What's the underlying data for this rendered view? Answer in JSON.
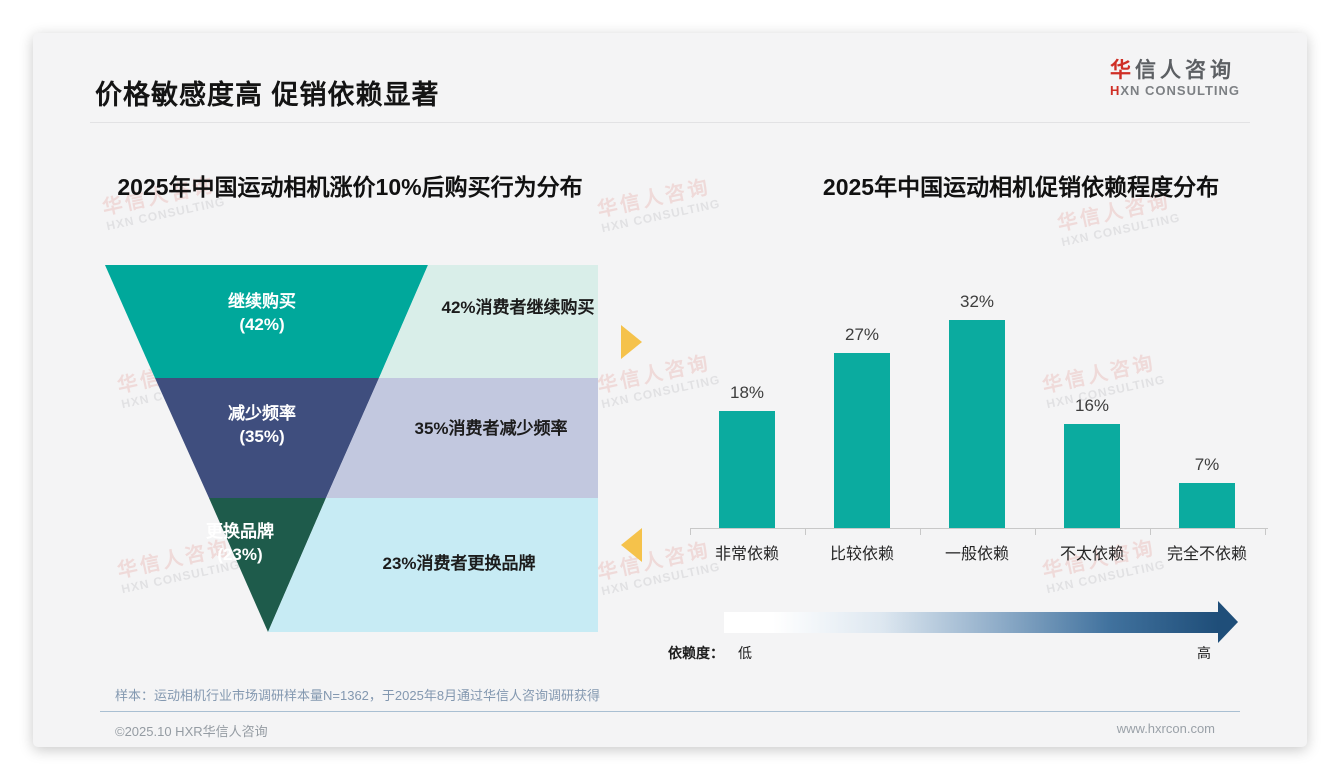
{
  "header": {
    "title": "价格敏感度高 促销依赖显著",
    "logo": {
      "brand_red": "华",
      "brand_rest": "信人咨询",
      "tagline_red": "H",
      "tagline_rest": "XN CONSULTING"
    }
  },
  "watermark": {
    "line1": "华信人咨询",
    "line2": "HXN CONSULTING"
  },
  "chart_data": [
    {
      "type": "funnel",
      "title": "2025年中国运动相机涨价10%后购买行为分布",
      "stages": [
        {
          "label": "继续购买",
          "value": 42,
          "pct_label": "(42%)",
          "note": "42%消费者继续购买",
          "color": "#00a89b",
          "panel_color": "#d9eee9"
        },
        {
          "label": "减少频率",
          "value": 35,
          "pct_label": "(35%)",
          "note": "35%消费者减少频率",
          "color": "#3f4e7e",
          "panel_color": "#c2c8df"
        },
        {
          "label": "更换品牌",
          "value": 23,
          "pct_label": "(23%)",
          "note": "23%消费者更换品牌",
          "color": "#1e5b4b",
          "panel_color": "#c7ebf4"
        }
      ]
    },
    {
      "type": "bar",
      "title": "2025年中国运动相机促销依赖程度分布",
      "categories": [
        "非常依赖",
        "比较依赖",
        "一般依赖",
        "不太依赖",
        "完全不依赖"
      ],
      "values": [
        18,
        27,
        32,
        16,
        7
      ],
      "value_labels": [
        "18%",
        "27%",
        "32%",
        "16%",
        "7%"
      ],
      "bar_color": "#0bab9f",
      "ylim": [
        0,
        36
      ],
      "grid": false,
      "legend": false,
      "xlabel": "",
      "ylabel": ""
    }
  ],
  "dependency_scale": {
    "label": "依赖度：",
    "low": "低",
    "high": "高"
  },
  "footnote": "样本：运动相机行业市场调研样本量N=1362，于2025年8月通过华信人咨询调研获得",
  "footer": {
    "copyright": "©2025.10 HXR华信人咨询",
    "website": "www.hxrcon.com"
  },
  "colors": {
    "accent_teal": "#0bab9f",
    "connector_gold": "#f5c24b",
    "gradient_end": "#1f4e79",
    "brand_red": "#cf2e25"
  }
}
